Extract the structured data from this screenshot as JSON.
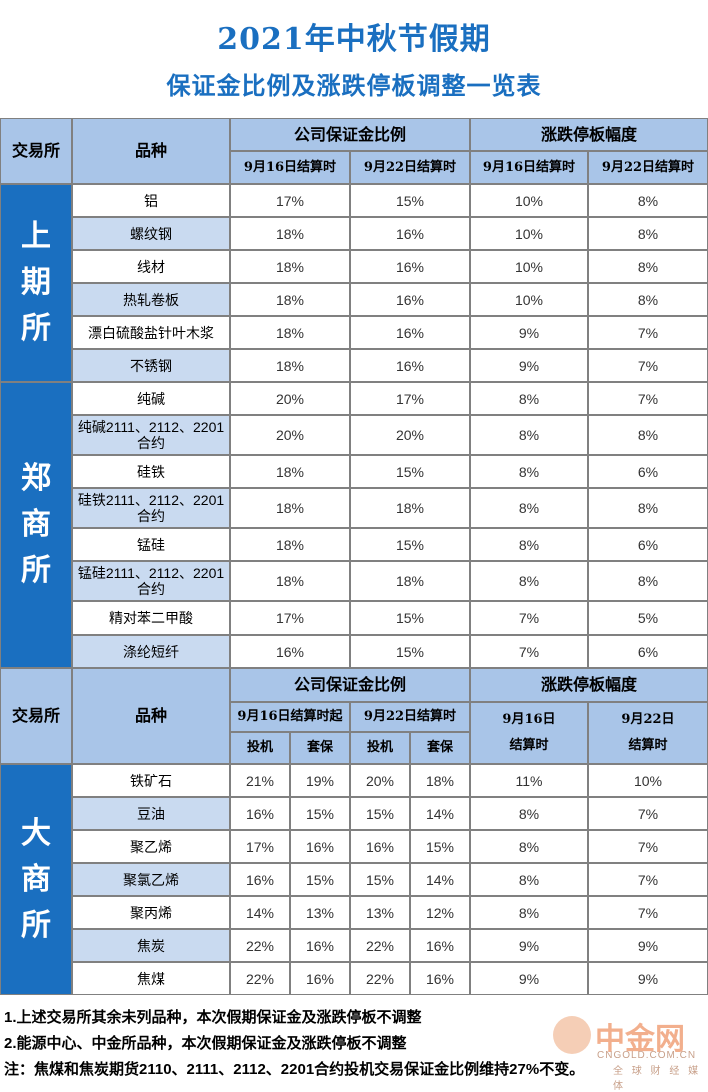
{
  "title": {
    "line1": "2021年中秋节假期",
    "line2": "保证金比例及涨跌停板调整一览表"
  },
  "header1": {
    "exchange": "交易所",
    "variety": "品种",
    "margin": "公司保证金比例",
    "limit": "涨跌停板幅度",
    "d1": "9月16日结算时",
    "d2": "9月22日结算时",
    "d3": "9月16日结算时",
    "d4": "9月22日结算时"
  },
  "shfe": {
    "name": "上期所",
    "chars": [
      "上",
      "期",
      "所"
    ],
    "rows": [
      {
        "name": "铝",
        "m1": "17%",
        "m2": "15%",
        "l1": "10%",
        "l2": "8%"
      },
      {
        "name": "螺纹钢",
        "m1": "18%",
        "m2": "16%",
        "l1": "10%",
        "l2": "8%"
      },
      {
        "name": "线材",
        "m1": "18%",
        "m2": "16%",
        "l1": "10%",
        "l2": "8%"
      },
      {
        "name": "热轧卷板",
        "m1": "18%",
        "m2": "16%",
        "l1": "10%",
        "l2": "8%"
      },
      {
        "name": "漂白硫酸盐针叶木浆",
        "m1": "18%",
        "m2": "16%",
        "l1": "9%",
        "l2": "7%"
      },
      {
        "name": "不锈钢",
        "m1": "18%",
        "m2": "16%",
        "l1": "9%",
        "l2": "7%"
      }
    ]
  },
  "czce": {
    "name": "郑商所",
    "chars": [
      "郑",
      "商",
      "所"
    ],
    "rows": [
      {
        "name": "纯碱",
        "m1": "20%",
        "m2": "17%",
        "l1": "8%",
        "l2": "7%"
      },
      {
        "name": "纯碱2111、2112、2201合约",
        "m1": "20%",
        "m2": "20%",
        "l1": "8%",
        "l2": "8%"
      },
      {
        "name": "硅铁",
        "m1": "18%",
        "m2": "15%",
        "l1": "8%",
        "l2": "6%"
      },
      {
        "name": "硅铁2111、2112、2201合约",
        "m1": "18%",
        "m2": "18%",
        "l1": "8%",
        "l2": "8%"
      },
      {
        "name": "锰硅",
        "m1": "18%",
        "m2": "15%",
        "l1": "8%",
        "l2": "6%"
      },
      {
        "name": "锰硅2111、2112、2201合约",
        "m1": "18%",
        "m2": "18%",
        "l1": "8%",
        "l2": "8%"
      },
      {
        "name": "精对苯二甲酸",
        "m1": "17%",
        "m2": "15%",
        "l1": "7%",
        "l2": "5%"
      },
      {
        "name": "涤纶短纤",
        "m1": "16%",
        "m2": "15%",
        "l1": "7%",
        "l2": "6%"
      }
    ]
  },
  "header2": {
    "exchange": "交易所",
    "variety": "品种",
    "margin": "公司保证金比例",
    "limit": "涨跌停板幅度",
    "d1": "9月16日结算时起",
    "d2": "9月22日结算时",
    "spec": "投机",
    "hedge": "套保",
    "l1a": "9月16日",
    "l1b": "结算时",
    "l2a": "9月22日",
    "l2b": "结算时"
  },
  "dce": {
    "name": "大商所",
    "chars": [
      "大",
      "商",
      "所"
    ],
    "rows": [
      {
        "name": "铁矿石",
        "s1": "21%",
        "h1": "19%",
        "s2": "20%",
        "h2": "18%",
        "l1": "11%",
        "l2": "10%"
      },
      {
        "name": "豆油",
        "s1": "16%",
        "h1": "15%",
        "s2": "15%",
        "h2": "14%",
        "l1": "8%",
        "l2": "7%"
      },
      {
        "name": "聚乙烯",
        "s1": "17%",
        "h1": "16%",
        "s2": "16%",
        "h2": "15%",
        "l1": "8%",
        "l2": "7%"
      },
      {
        "name": "聚氯乙烯",
        "s1": "16%",
        "h1": "15%",
        "s2": "15%",
        "h2": "14%",
        "l1": "8%",
        "l2": "7%"
      },
      {
        "name": "聚丙烯",
        "s1": "14%",
        "h1": "13%",
        "s2": "13%",
        "h2": "12%",
        "l1": "8%",
        "l2": "7%"
      },
      {
        "name": "焦炭",
        "s1": "22%",
        "h1": "16%",
        "s2": "22%",
        "h2": "16%",
        "l1": "9%",
        "l2": "9%"
      },
      {
        "name": "焦煤",
        "s1": "22%",
        "h1": "16%",
        "s2": "22%",
        "h2": "16%",
        "l1": "9%",
        "l2": "9%"
      }
    ]
  },
  "notes": {
    "n1": "1.上述交易所其余未列品种，本次假期保证金及涨跌停板不调整",
    "n2": "2.能源中心、中金所品种，本次假期保证金及涨跌停板不调整",
    "n3": "注：焦煤和焦炭期货2110、2111、2112、2201合约投机交易保证金比例维持27%不变。"
  },
  "logo": {
    "text": "中金网",
    "domain": "CNGOLD.COM.CN",
    "tag": "全 球 财 经 媒 体"
  }
}
